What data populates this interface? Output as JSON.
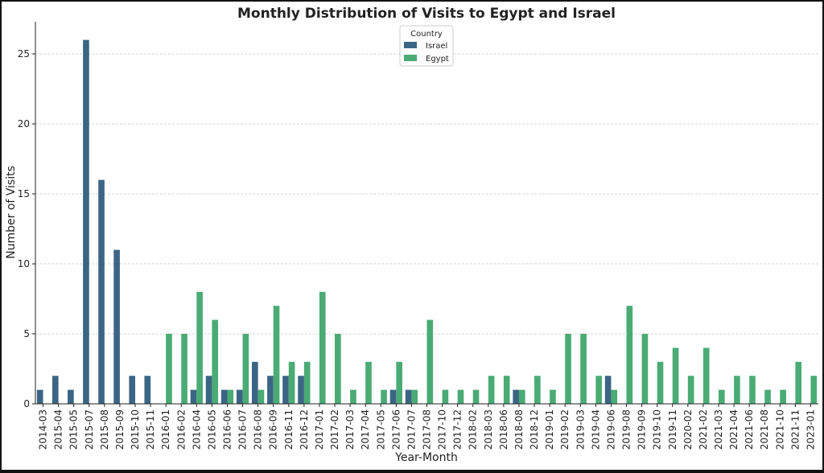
{
  "chart_data": {
    "type": "bar",
    "title": "Monthly Distribution of Visits to Egypt and Israel",
    "xlabel": "Year-Month",
    "ylabel": "Number of Visits",
    "ylim": [
      0,
      27.3
    ],
    "yticks": [
      0,
      5,
      10,
      15,
      20,
      25
    ],
    "grid": true,
    "legend": {
      "title": "Country",
      "placement": "top-center"
    },
    "categories": [
      "2014-03",
      "2015-04",
      "2015-05",
      "2015-07",
      "2015-08",
      "2015-09",
      "2015-10",
      "2015-11",
      "2016-01",
      "2016-02",
      "2016-04",
      "2016-05",
      "2016-06",
      "2016-07",
      "2016-08",
      "2016-09",
      "2016-11",
      "2016-12",
      "2017-01",
      "2017-02",
      "2017-03",
      "2017-04",
      "2017-05",
      "2017-06",
      "2017-07",
      "2017-08",
      "2017-10",
      "2017-12",
      "2018-02",
      "2018-03",
      "2018-06",
      "2018-08",
      "2018-12",
      "2019-01",
      "2019-02",
      "2019-03",
      "2019-04",
      "2019-06",
      "2019-08",
      "2019-09",
      "2019-10",
      "2019-11",
      "2020-02",
      "2021-02",
      "2021-03",
      "2021-04",
      "2021-06",
      "2021-08",
      "2021-10",
      "2021-11",
      "2023-01"
    ],
    "series": [
      {
        "name": "Israel",
        "color": "#3b6584",
        "values": [
          1,
          2,
          1,
          26,
          16,
          11,
          2,
          2,
          0,
          0,
          1,
          2,
          1,
          1,
          3,
          2,
          2,
          2,
          0,
          0,
          0,
          0,
          0,
          1,
          1,
          0,
          0,
          0,
          0,
          0,
          0,
          1,
          0,
          0,
          0,
          0,
          0,
          2,
          0,
          0,
          0,
          0,
          0,
          0,
          0,
          0,
          0,
          0,
          0,
          0,
          0
        ]
      },
      {
        "name": "Egypt",
        "color": "#4aab74",
        "values": [
          0,
          0,
          0,
          0,
          0,
          0,
          0,
          0,
          5,
          5,
          8,
          6,
          1,
          5,
          1,
          7,
          3,
          3,
          8,
          5,
          1,
          3,
          1,
          3,
          1,
          6,
          1,
          1,
          1,
          2,
          2,
          1,
          2,
          1,
          5,
          5,
          2,
          1,
          7,
          5,
          3,
          4,
          2,
          4,
          1,
          2,
          2,
          1,
          1,
          3,
          2
        ]
      }
    ]
  }
}
